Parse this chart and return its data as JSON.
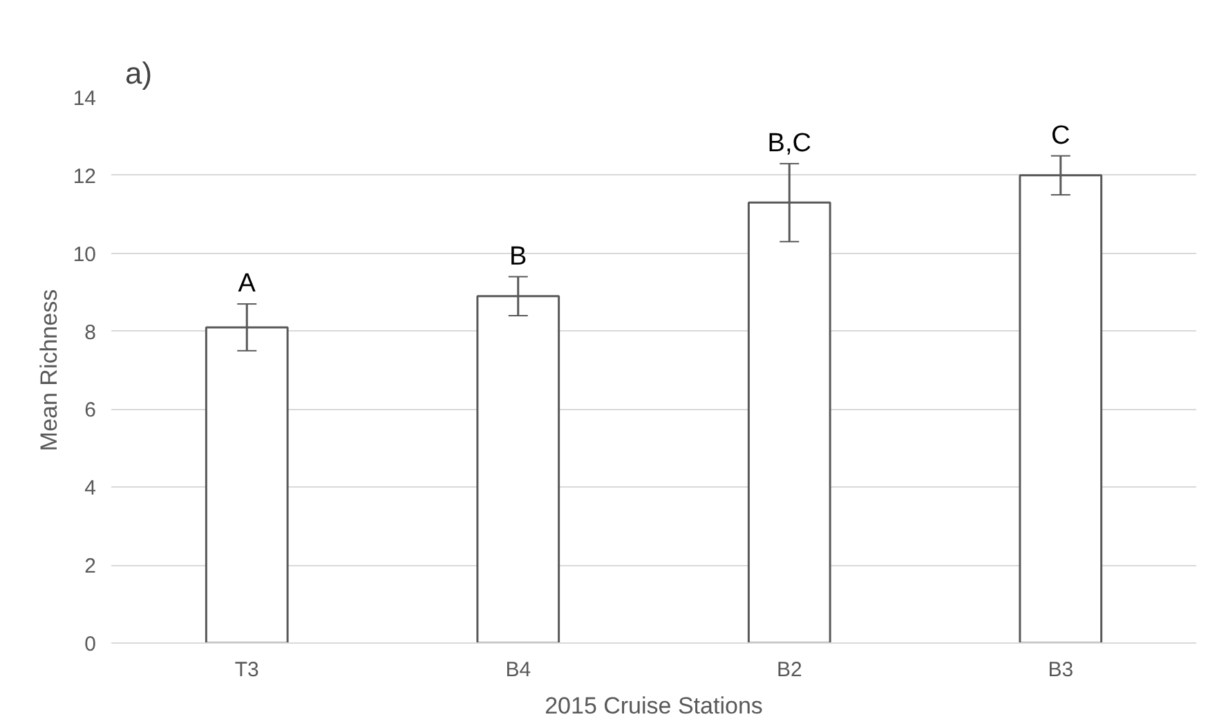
{
  "chart_data": {
    "type": "bar",
    "title": "a)",
    "xlabel": "2015 Cruise Stations",
    "ylabel": "Mean Richness",
    "categories": [
      "T3",
      "B4",
      "B2",
      "B3"
    ],
    "values": [
      8.1,
      8.9,
      11.3,
      12.0
    ],
    "errors": [
      0.6,
      0.5,
      1.0,
      0.5
    ],
    "color": "#ffffff",
    "ylim": [
      0,
      14
    ],
    "yticks": [
      0,
      2,
      4,
      6,
      8,
      10,
      12,
      14
    ],
    "grid": "y",
    "annotations": [
      {
        "text": "A",
        "x": "T3",
        "y": 8.7
      },
      {
        "text": "B",
        "x": "B4",
        "y": 9.4
      },
      {
        "text": "B,C",
        "x": "B2",
        "y": 12.3
      },
      {
        "text": "C",
        "x": "B3",
        "y": 12.5
      }
    ]
  }
}
